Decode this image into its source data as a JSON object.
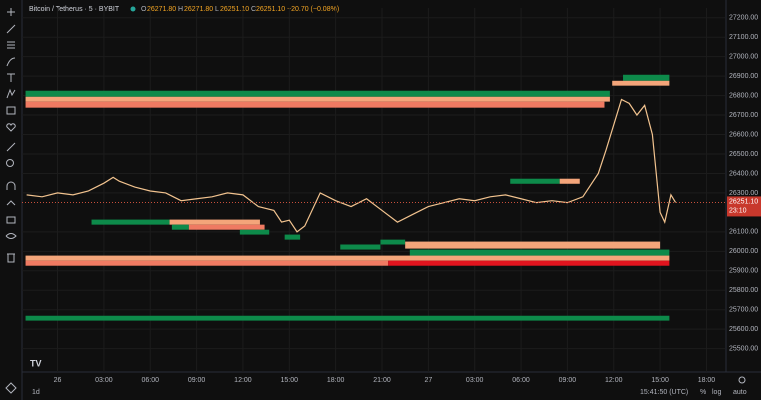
{
  "header": {
    "symbol": "Bitcoin / Tetherus · 5 · BYBIT",
    "o_label": "O",
    "o": "26271.80",
    "h_label": "H",
    "h": "26271.80",
    "l_label": "L",
    "l": "26251.10",
    "c_label": "C",
    "c": "26251.10",
    "change": "−20.70 (−0.08%)"
  },
  "footer": {
    "range": "1d",
    "clock": "15:41:50 (UTC)",
    "percent": "%",
    "log": "log",
    "auto": "auto"
  },
  "chart_data": {
    "type": "line",
    "color": "#f2c38f",
    "x": [
      -2,
      -1,
      0,
      1,
      2,
      3,
      3.6,
      4,
      5,
      6,
      7,
      8,
      9,
      10,
      11,
      12,
      13,
      14,
      14.5,
      15,
      15.5,
      16,
      17,
      18,
      19,
      20,
      21,
      22,
      23,
      24,
      25,
      26,
      27,
      28,
      29,
      30,
      31,
      32,
      33,
      34,
      35,
      35.5,
      36,
      36.5,
      37,
      37.5,
      38,
      38.5,
      39,
      39.3,
      39.7,
      40
    ],
    "values": [
      26290,
      26280,
      26300,
      26290,
      26310,
      26350,
      26380,
      26360,
      26330,
      26310,
      26300,
      26260,
      26270,
      26280,
      26300,
      26290,
      26230,
      26210,
      26150,
      26160,
      26100,
      26130,
      26300,
      26260,
      26230,
      26270,
      26210,
      26150,
      26190,
      26230,
      26250,
      26270,
      26260,
      26280,
      26290,
      26270,
      26250,
      26260,
      26250,
      26280,
      26400,
      26520,
      26650,
      26780,
      26760,
      26700,
      26750,
      26600,
      26200,
      26150,
      26290,
      26251
    ],
    "last_price": {
      "value": 26251.1,
      "label": "26251.10"
    },
    "countdown": "23:10",
    "zones": [
      {
        "start": -2.07,
        "end": 35.75,
        "low": 26794,
        "high": 26825,
        "color": "#0d8a4a"
      },
      {
        "start": -2.07,
        "end": 35.75,
        "low": 26769,
        "high": 26794,
        "color": "#f4a57a"
      },
      {
        "start": -2.07,
        "end": 35.4,
        "low": 26738,
        "high": 26769,
        "color": "#ef7a62"
      },
      {
        "start": 36.6,
        "end": 39.6,
        "low": 26876,
        "high": 26907,
        "color": "#0d8a4a"
      },
      {
        "start": 35.9,
        "end": 39.6,
        "low": 26851,
        "high": 26876,
        "color": "#f4a57a"
      },
      {
        "start": 29.3,
        "end": 32.5,
        "low": 26347,
        "high": 26373,
        "color": "#0d8a4a"
      },
      {
        "start": 32.5,
        "end": 33.8,
        "low": 26347,
        "high": 26373,
        "color": "#f4a57a"
      },
      {
        "start": 2.2,
        "end": 7.25,
        "low": 26137,
        "high": 26163,
        "color": "#0d8a4a"
      },
      {
        "start": 7.25,
        "end": 13.1,
        "low": 26137,
        "high": 26163,
        "color": "#f4a57a"
      },
      {
        "start": 7.4,
        "end": 8.5,
        "low": 26111,
        "high": 26137,
        "color": "#0d8a4a"
      },
      {
        "start": 8.5,
        "end": 13.4,
        "low": 26111,
        "high": 26137,
        "color": "#ef7a62"
      },
      {
        "start": 11.8,
        "end": 13.7,
        "low": 26086,
        "high": 26111,
        "color": "#0d8a4a"
      },
      {
        "start": 14.7,
        "end": 15.7,
        "low": 26060,
        "high": 26086,
        "color": "#0d8a4a"
      },
      {
        "start": 20.9,
        "end": 22.5,
        "low": 26035,
        "high": 26060,
        "color": "#0d8a4a"
      },
      {
        "start": 22.5,
        "end": 39.0,
        "low": 26014,
        "high": 26050,
        "color": "#f4a57a"
      },
      {
        "start": 18.3,
        "end": 20.9,
        "low": 26009,
        "high": 26035,
        "color": "#0d8a4a"
      },
      {
        "start": 22.8,
        "end": 39.6,
        "low": 25978,
        "high": 26009,
        "color": "#0d8a4a"
      },
      {
        "start": -2.07,
        "end": 39.6,
        "low": 25952,
        "high": 25978,
        "color": "#f4a57a"
      },
      {
        "start": -2.07,
        "end": 21.4,
        "low": 25926,
        "high": 25952,
        "color": "#ef7a62"
      },
      {
        "start": 21.4,
        "end": 39.6,
        "low": 25926,
        "high": 25952,
        "color": "#e0141e"
      },
      {
        "start": -2.07,
        "end": 39.6,
        "low": 25644,
        "high": 25669,
        "color": "#0d8a4a"
      }
    ],
    "xlim": [
      -2.3,
      43.2
    ],
    "ylim": [
      25380,
      27250
    ],
    "xticks": [
      {
        "value": 0,
        "label": "26"
      },
      {
        "value": 3,
        "label": "03:00"
      },
      {
        "value": 6,
        "label": "06:00"
      },
      {
        "value": 9,
        "label": "09:00"
      },
      {
        "value": 12,
        "label": "12:00"
      },
      {
        "value": 15,
        "label": "15:00"
      },
      {
        "value": 18,
        "label": "18:00"
      },
      {
        "value": 21,
        "label": "21:00"
      },
      {
        "value": 24,
        "label": "27"
      },
      {
        "value": 27,
        "label": "03:00"
      },
      {
        "value": 30,
        "label": "06:00"
      },
      {
        "value": 33,
        "label": "09:00"
      },
      {
        "value": 36,
        "label": "12:00"
      },
      {
        "value": 39,
        "label": "15:00"
      },
      {
        "value": 42,
        "label": "18:00"
      }
    ],
    "yticks": [
      {
        "value": 27200,
        "label": "27200.00"
      },
      {
        "value": 27100,
        "label": "27100.00"
      },
      {
        "value": 27000,
        "label": "27000.00"
      },
      {
        "value": 26900,
        "label": "26900.00"
      },
      {
        "value": 26800,
        "label": "26800.00"
      },
      {
        "value": 26700,
        "label": "26700.00"
      },
      {
        "value": 26600,
        "label": "26600.00"
      },
      {
        "value": 26500,
        "label": "26500.00"
      },
      {
        "value": 26400,
        "label": "26400.00"
      },
      {
        "value": 26300,
        "label": "26300.00"
      },
      {
        "value": 26100,
        "label": "26100.00"
      },
      {
        "value": 26000,
        "label": "26000.00"
      },
      {
        "value": 25900,
        "label": "25900.00"
      },
      {
        "value": 25800,
        "label": "25800.00"
      },
      {
        "value": 25700,
        "label": "25700.00"
      },
      {
        "value": 25600,
        "label": "25600.00"
      },
      {
        "value": 25500,
        "label": "25500.00"
      }
    ],
    "grid": true
  }
}
